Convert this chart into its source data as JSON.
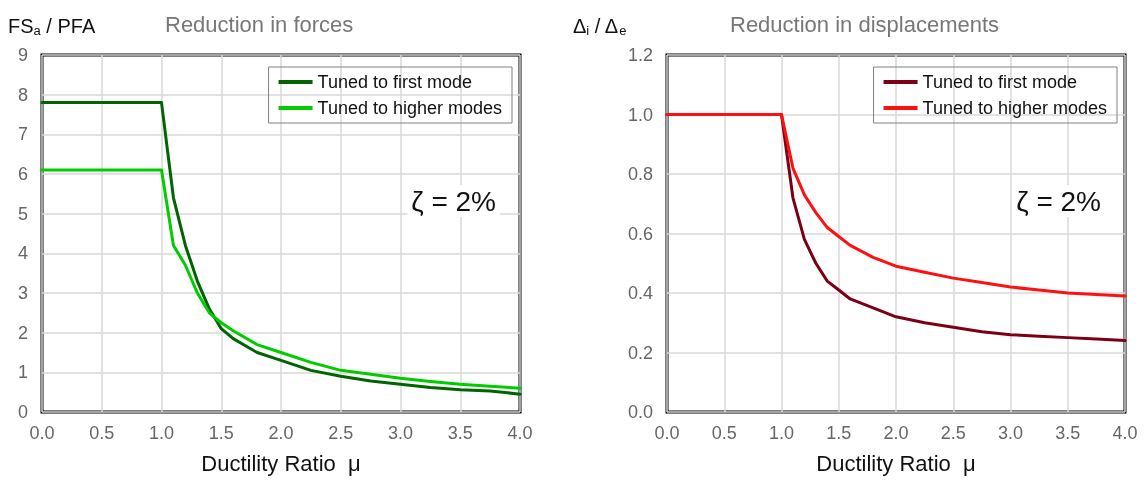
{
  "chart_data": [
    {
      "type": "line",
      "title": "Reduction in forces",
      "xlabel": "Ductility Ratio  μ",
      "ylabel": "FS$_{a}$ / PFA",
      "annotations": [
        "ζ = 2%"
      ],
      "xlim": [
        0,
        4
      ],
      "xticks": [
        {
          "value": 0,
          "label": "0.0"
        },
        {
          "value": 0.5,
          "label": "0.5"
        },
        {
          "value": 1,
          "label": "1.0"
        },
        {
          "value": 1.5,
          "label": "1.5"
        },
        {
          "value": 2,
          "label": "2.0"
        },
        {
          "value": 2.5,
          "label": "2.5"
        },
        {
          "value": 3,
          "label": "3.0"
        },
        {
          "value": 3.5,
          "label": "3.5"
        },
        {
          "value": 4,
          "label": "4.0"
        }
      ],
      "ylim": [
        0,
        9
      ],
      "yticks": [
        0,
        1,
        2,
        3,
        4,
        5,
        6,
        7,
        8,
        9
      ],
      "grid": true,
      "legend": "top right",
      "marker": "none",
      "line_style": "solid",
      "x": [
        0,
        1,
        1.1,
        1.2,
        1.3,
        1.4,
        1.5,
        1.6,
        1.8,
        2,
        2.25,
        2.5,
        2.75,
        3,
        3.25,
        3.5,
        3.75,
        4
      ],
      "series": [
        {
          "name": "Tuned to first mode",
          "color": "#006400",
          "values": [
            7.8,
            7.8,
            5.4,
            4.2,
            3.3,
            2.6,
            2.1,
            1.85,
            1.5,
            1.3,
            1.05,
            0.9,
            0.78,
            0.7,
            0.62,
            0.56,
            0.53,
            0.45
          ]
        },
        {
          "name": "Tuned to higher modes",
          "color": "#00cc00",
          "values": [
            6.1,
            6.1,
            4.2,
            3.7,
            3.0,
            2.5,
            2.25,
            2.05,
            1.7,
            1.5,
            1.25,
            1.05,
            0.95,
            0.85,
            0.77,
            0.7,
            0.65,
            0.6
          ]
        }
      ]
    },
    {
      "type": "line",
      "title": "Reduction in displacements",
      "xlabel": "Ductility Ratio  μ",
      "ylabel": "Δ$_{i}$ / Δ$_{e}$",
      "annotations": [
        "ζ = 2%"
      ],
      "xlim": [
        0,
        4
      ],
      "xticks": [
        {
          "value": 0,
          "label": "0.0"
        },
        {
          "value": 0.5,
          "label": "0.5"
        },
        {
          "value": 1,
          "label": "1.0"
        },
        {
          "value": 1.5,
          "label": "1.5"
        },
        {
          "value": 2,
          "label": "2.0"
        },
        {
          "value": 2.5,
          "label": "2.5"
        },
        {
          "value": 3,
          "label": "3.0"
        },
        {
          "value": 3.5,
          "label": "3.5"
        },
        {
          "value": 4,
          "label": "4.0"
        }
      ],
      "ylim": [
        0,
        1.2
      ],
      "yticks": [
        {
          "value": 0,
          "label": "0.0"
        },
        {
          "value": 0.2,
          "label": "0.2"
        },
        {
          "value": 0.4,
          "label": "0.4"
        },
        {
          "value": 0.6,
          "label": "0.6"
        },
        {
          "value": 0.8,
          "label": "0.8"
        },
        {
          "value": 1,
          "label": "1.0"
        },
        {
          "value": 1.2,
          "label": "1.2"
        }
      ],
      "grid": true,
      "legend": "top right",
      "marker": "none",
      "line_style": "solid",
      "x": [
        0,
        1,
        1.1,
        1.2,
        1.3,
        1.4,
        1.5,
        1.6,
        1.8,
        2,
        2.25,
        2.5,
        2.75,
        3,
        3.25,
        3.5,
        3.75,
        4
      ],
      "series": [
        {
          "name": "Tuned to first mode",
          "color": "#7b0014",
          "values": [
            1,
            1,
            0.72,
            0.58,
            0.5,
            0.44,
            0.41,
            0.38,
            0.35,
            0.32,
            0.3,
            0.285,
            0.27,
            0.26,
            0.255,
            0.25,
            0.245,
            0.24
          ]
        },
        {
          "name": "Tuned to higher modes",
          "color": "#ff1010",
          "values": [
            1,
            1,
            0.82,
            0.73,
            0.67,
            0.62,
            0.59,
            0.56,
            0.52,
            0.49,
            0.47,
            0.45,
            0.435,
            0.42,
            0.41,
            0.4,
            0.395,
            0.39
          ]
        }
      ]
    }
  ]
}
